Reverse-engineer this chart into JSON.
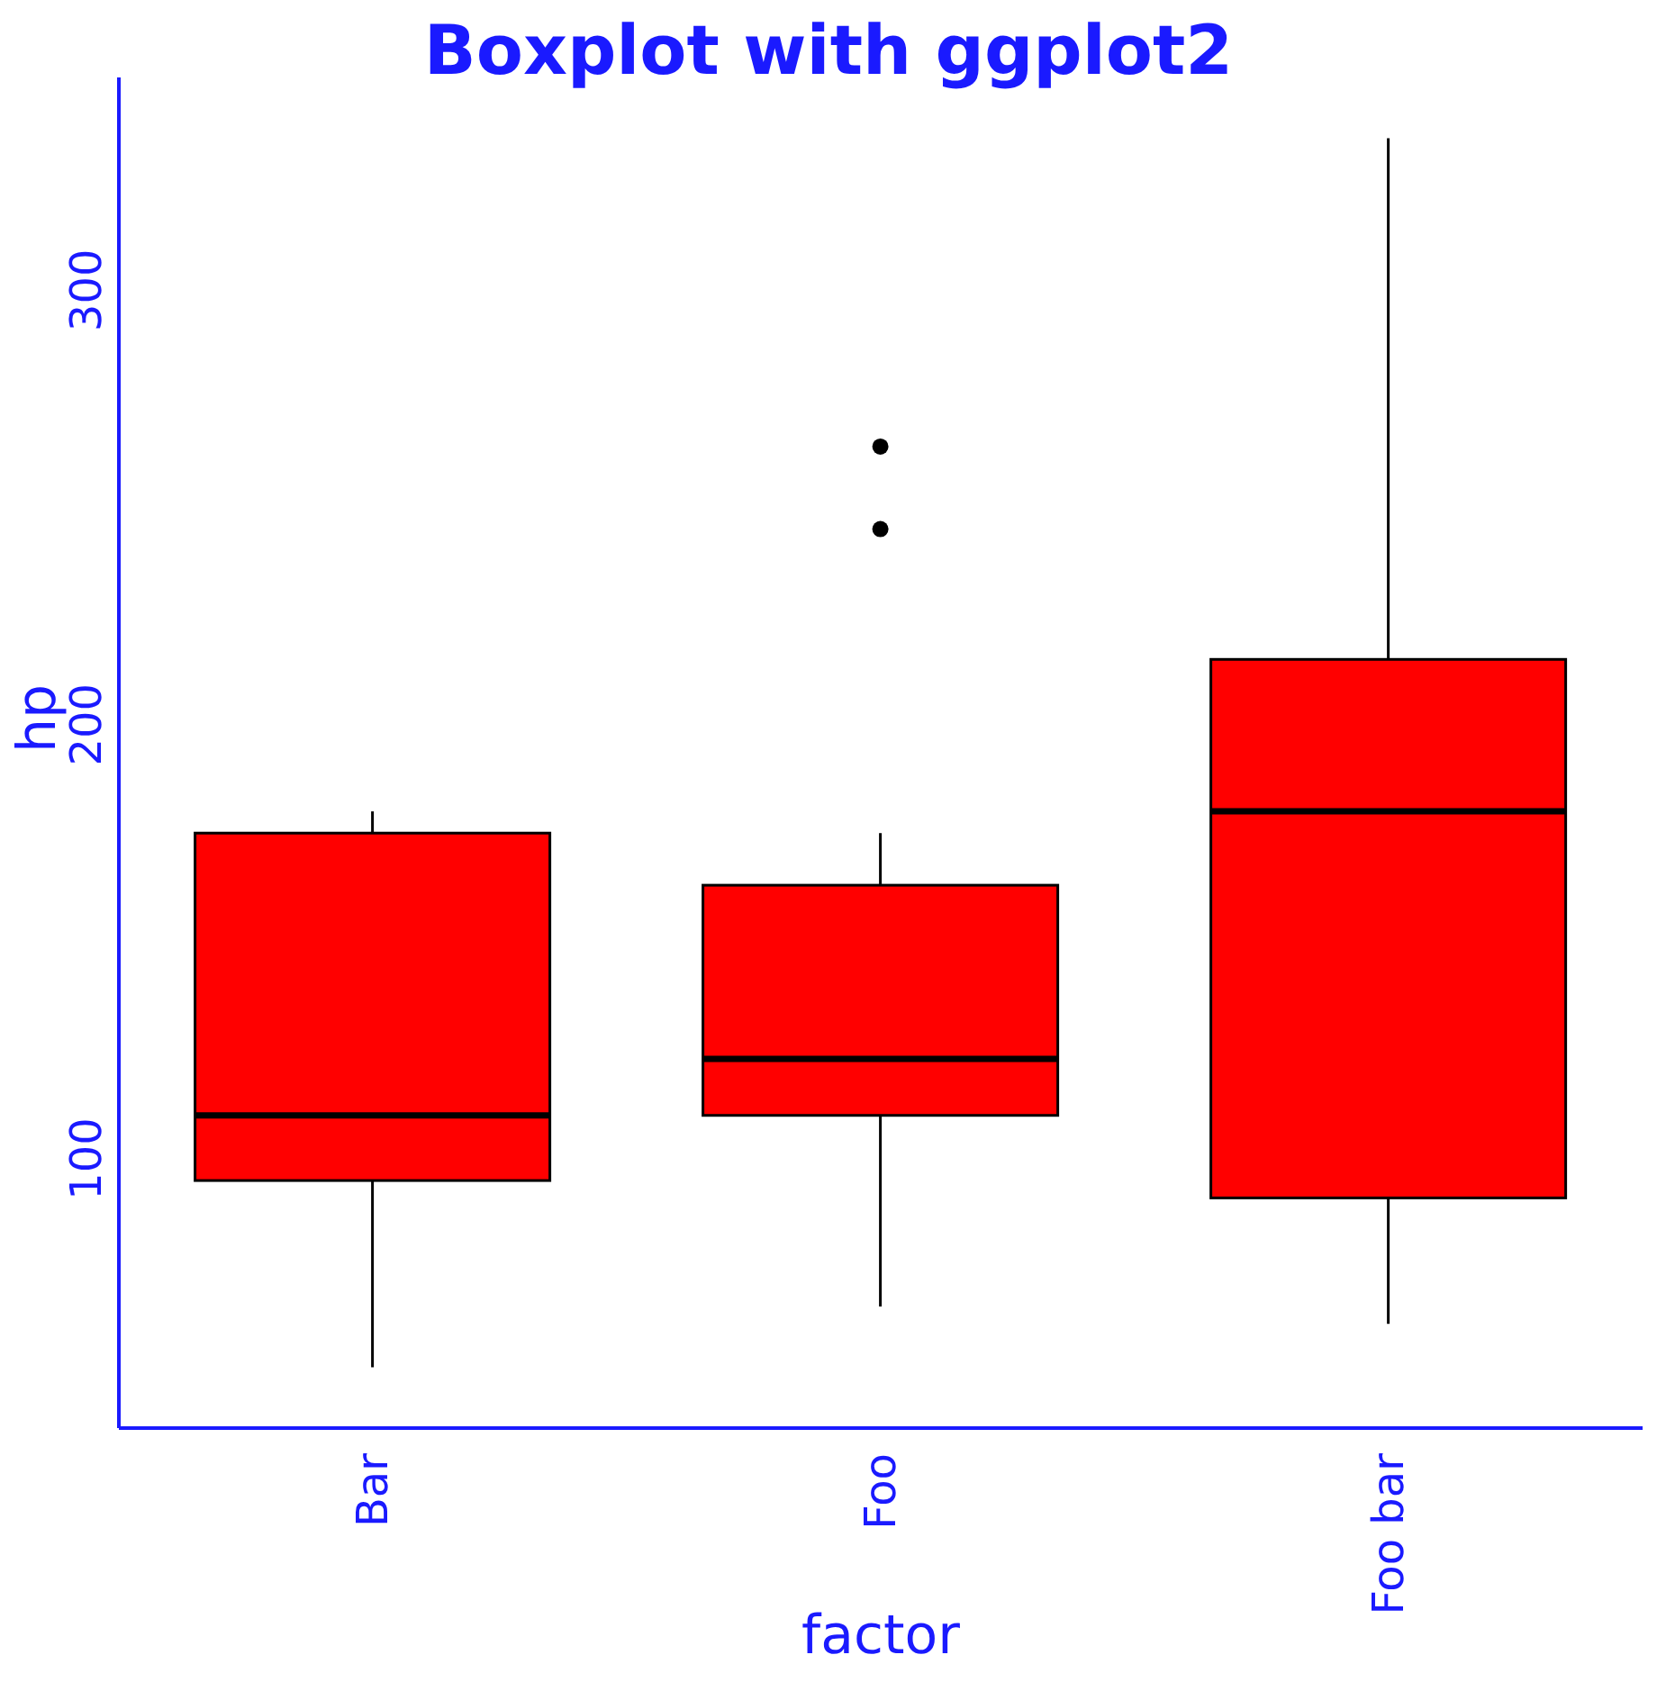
{
  "chart_data": {
    "type": "box",
    "title": "Boxplot with ggplot2",
    "xlabel": "factor",
    "ylabel": "hp",
    "categories": [
      "Bar",
      "Foo",
      "Foo bar"
    ],
    "color": "#ff0000",
    "ylim": [
      38,
      349
    ],
    "yticks": [
      100,
      200,
      300
    ],
    "grid": false,
    "boxes": [
      {
        "low": 52,
        "q1": 95,
        "median": 110,
        "q3": 175,
        "high": 180
      },
      {
        "low": 66,
        "q1": 110,
        "median": 123,
        "q3": 163,
        "high": 175,
        "outliers": [
          245,
          264
        ]
      },
      {
        "low": 62,
        "q1": 91,
        "median": 180,
        "q3": 215,
        "high": 335
      }
    ]
  }
}
